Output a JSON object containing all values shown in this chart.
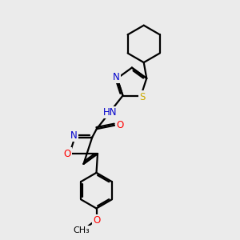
{
  "bg_color": "#ebebeb",
  "bond_color": "#000000",
  "bond_width": 1.6,
  "S_color": "#ccaa00",
  "N_color": "#0000cc",
  "O_color": "#ff0000",
  "C_color": "#000000",
  "font_size": 8.5,
  "fig_size": [
    3.0,
    3.0
  ],
  "dpi": 100,
  "xlim": [
    0,
    10
  ],
  "ylim": [
    0,
    10
  ]
}
